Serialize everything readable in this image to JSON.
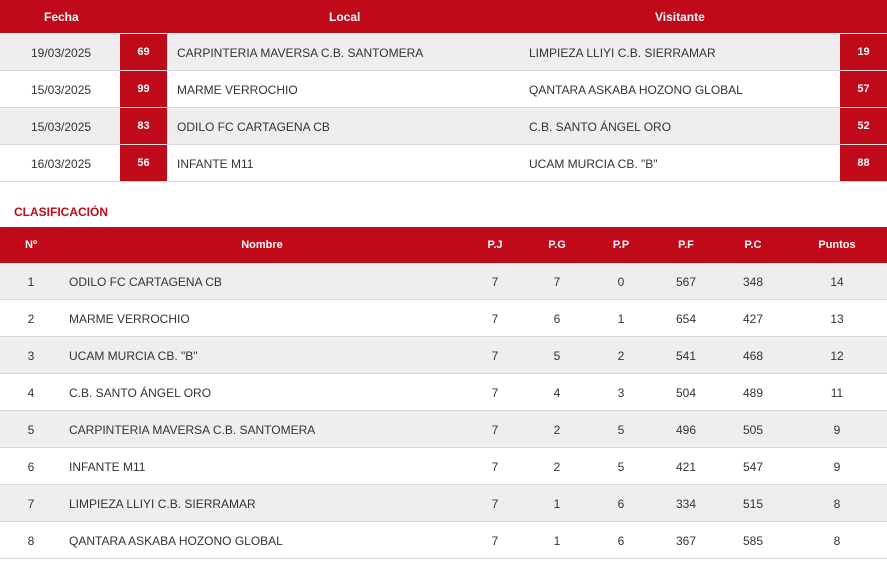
{
  "results": {
    "headers": {
      "fecha": "Fecha",
      "local": "Local",
      "visitante": "Visitante"
    },
    "rows": [
      {
        "date": "19/03/2025",
        "home_score": "69",
        "home": "CARPINTERIA MAVERSA C.B. SANTOMERA",
        "away": "LIMPIEZA LLIYI C.B. SIERRAMAR",
        "away_score": "19"
      },
      {
        "date": "15/03/2025",
        "home_score": "99",
        "home": "MARME VERROCHIO",
        "away": "QANTARA ASKABA HOZONO GLOBAL",
        "away_score": "57"
      },
      {
        "date": "15/03/2025",
        "home_score": "83",
        "home": "ODILO FC CARTAGENA CB",
        "away": "C.B. SANTO ÁNGEL ORO",
        "away_score": "52"
      },
      {
        "date": "16/03/2025",
        "home_score": "56",
        "home": "INFANTE M11",
        "away": "UCAM MURCIA CB. \"B\"",
        "away_score": "88"
      }
    ]
  },
  "standings": {
    "title": "CLASIFICACIÓN",
    "headers": {
      "pos": "Nº",
      "name": "Nombre",
      "pj": "P.J",
      "pg": "P.G",
      "pp": "P.P",
      "pf": "P.F",
      "pc": "P.C",
      "pts": "Puntos"
    },
    "rows": [
      {
        "pos": "1",
        "name": "ODILO FC CARTAGENA CB",
        "pj": "7",
        "pg": "7",
        "pp": "0",
        "pf": "567",
        "pc": "348",
        "pts": "14"
      },
      {
        "pos": "2",
        "name": "MARME VERROCHIO",
        "pj": "7",
        "pg": "6",
        "pp": "1",
        "pf": "654",
        "pc": "427",
        "pts": "13"
      },
      {
        "pos": "3",
        "name": "UCAM MURCIA CB. \"B\"",
        "pj": "7",
        "pg": "5",
        "pp": "2",
        "pf": "541",
        "pc": "468",
        "pts": "12"
      },
      {
        "pos": "4",
        "name": "C.B. SANTO ÁNGEL ORO",
        "pj": "7",
        "pg": "4",
        "pp": "3",
        "pf": "504",
        "pc": "489",
        "pts": "11"
      },
      {
        "pos": "5",
        "name": "CARPINTERIA MAVERSA C.B. SANTOMERA",
        "pj": "7",
        "pg": "2",
        "pp": "5",
        "pf": "496",
        "pc": "505",
        "pts": "9"
      },
      {
        "pos": "6",
        "name": "INFANTE M11",
        "pj": "7",
        "pg": "2",
        "pp": "5",
        "pf": "421",
        "pc": "547",
        "pts": "9"
      },
      {
        "pos": "7",
        "name": "LIMPIEZA LLIYI C.B. SIERRAMAR",
        "pj": "7",
        "pg": "1",
        "pp": "6",
        "pf": "334",
        "pc": "515",
        "pts": "8"
      },
      {
        "pos": "8",
        "name": "QANTARA ASKABA HOZONO GLOBAL",
        "pj": "7",
        "pg": "1",
        "pp": "6",
        "pf": "367",
        "pc": "585",
        "pts": "8"
      }
    ]
  },
  "colors": {
    "accent": "#c00a1a",
    "row_alt": "#eeeeee"
  }
}
